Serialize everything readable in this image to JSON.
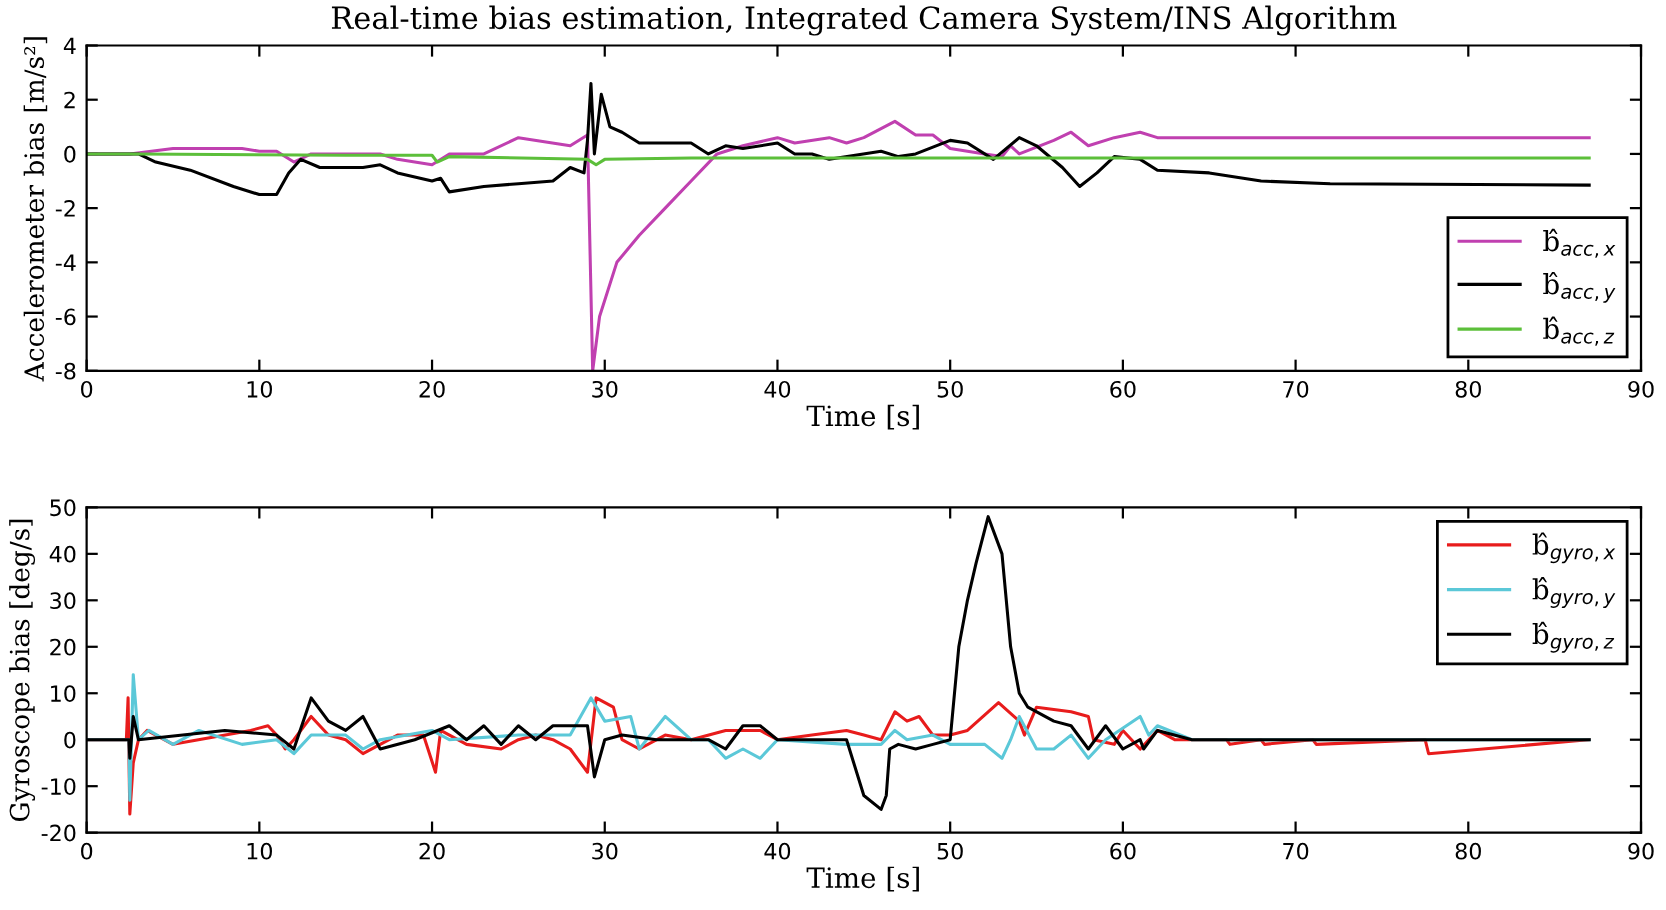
{
  "chart_data": [
    {
      "type": "line",
      "title": "Real-time bias estimation, Integrated Camera System/INS Algorithm",
      "xlabel": "Time [s]",
      "ylabel": "Accelerometer bias [m/s²]",
      "xlim": [
        0,
        90
      ],
      "ylim": [
        -8,
        4
      ],
      "xticks": [
        0,
        10,
        20,
        30,
        40,
        50,
        60,
        70,
        80,
        90
      ],
      "yticks": [
        -8,
        -6,
        -4,
        -2,
        0,
        2,
        4
      ],
      "grid": false,
      "legend": "bottom right",
      "series": [
        {
          "name": "b̂$_{acc,x}$",
          "color": "#c040b0",
          "x": [
            0,
            2.5,
            5,
            9,
            10,
            11,
            12,
            13,
            17,
            18,
            20,
            21,
            23,
            25,
            28,
            29,
            29.3,
            29.7,
            30.7,
            32,
            33.5,
            35,
            36.5,
            38,
            40,
            41,
            43,
            44,
            45,
            46.8,
            48,
            49,
            50,
            52,
            53,
            53.5,
            54,
            56,
            57,
            58,
            59.5,
            61,
            62,
            65,
            87
          ],
          "values": [
            0,
            0,
            0.2,
            0.2,
            0.1,
            0.1,
            -0.3,
            0,
            0,
            -0.2,
            -0.4,
            0,
            0,
            0.6,
            0.3,
            0.7,
            -8,
            -6,
            -4,
            -3,
            -2,
            -1,
            0,
            0.3,
            0.6,
            0.4,
            0.6,
            0.4,
            0.6,
            1.2,
            0.7,
            0.7,
            0.2,
            0,
            -0.1,
            0.3,
            0,
            0.5,
            0.8,
            0.3,
            0.6,
            0.8,
            0.6,
            0.6,
            0.6
          ]
        },
        {
          "name": "b̂$_{acc,y}$",
          "color": "#000000",
          "x": [
            0,
            3,
            4,
            6,
            8.5,
            10,
            11,
            11.7,
            12.4,
            13.5,
            16,
            17,
            18,
            20,
            20.5,
            21,
            23,
            25,
            27,
            28,
            28.8,
            29,
            29.2,
            29.4,
            29.8,
            30.3,
            31,
            32,
            35,
            36,
            37,
            38,
            40,
            41,
            42,
            43,
            46,
            47,
            48,
            50,
            51,
            52.5,
            54,
            55,
            56.5,
            57.5,
            58.5,
            59.5,
            61,
            62,
            65,
            68,
            72,
            87
          ],
          "values": [
            0,
            0,
            -0.3,
            -0.6,
            -1.2,
            -1.5,
            -1.5,
            -0.7,
            -0.2,
            -0.5,
            -0.5,
            -0.4,
            -0.7,
            -1,
            -0.9,
            -1.4,
            -1.2,
            -1.1,
            -1,
            -0.5,
            -0.7,
            0.5,
            2.6,
            0,
            2.2,
            1,
            0.8,
            0.4,
            0.4,
            0,
            0.3,
            0.2,
            0.4,
            0,
            0,
            -0.2,
            0.1,
            -0.1,
            0,
            0.5,
            0.4,
            -0.2,
            0.6,
            0.3,
            -0.5,
            -1.2,
            -0.7,
            -0.1,
            -0.2,
            -0.6,
            -0.7,
            -1,
            -1.1,
            -1.15
          ]
        },
        {
          "name": "b̂$_{acc,z}$",
          "color": "#5cbf3a",
          "x": [
            0,
            3,
            15,
            20,
            20.3,
            21,
            29,
            29.5,
            30,
            35,
            87
          ],
          "values": [
            0,
            0,
            -0.05,
            -0.05,
            -0.3,
            -0.1,
            -0.2,
            -0.4,
            -0.2,
            -0.15,
            -0.15
          ]
        }
      ]
    },
    {
      "type": "line",
      "xlabel": "Time [s]",
      "ylabel": "Gyroscope bias [deg/s]",
      "xlim": [
        0,
        90
      ],
      "ylim": [
        -20,
        50
      ],
      "xticks": [
        0,
        10,
        20,
        30,
        40,
        50,
        60,
        70,
        80,
        90
      ],
      "yticks": [
        -20,
        -10,
        0,
        10,
        20,
        30,
        40,
        50
      ],
      "grid": false,
      "legend": "top right",
      "series": [
        {
          "name": "b̂$_{gyro,x}$",
          "color": "#e81c1c",
          "x": [
            0,
            2.3,
            2.4,
            2.5,
            2.7,
            3,
            3.5,
            5,
            9.5,
            10.5,
            11,
            11.5,
            12,
            13,
            14,
            15,
            16,
            17,
            18,
            19.5,
            20.2,
            20.5,
            22,
            24,
            25,
            26,
            27,
            28,
            29,
            29.5,
            30.5,
            31,
            32,
            33.5,
            35,
            37,
            39,
            40,
            42,
            44,
            45,
            46,
            46.8,
            47.5,
            48.2,
            49,
            50,
            51,
            52.8,
            54,
            54.3,
            55,
            57,
            58,
            58.3,
            59.5,
            60,
            61,
            62,
            63,
            66,
            66.2,
            68,
            68.2,
            71,
            71.2,
            77.5,
            77.7,
            87
          ],
          "values": [
            0,
            0,
            9,
            -16,
            -5,
            0,
            2,
            -1,
            2,
            3,
            1,
            -2,
            0,
            5,
            1,
            0,
            -3,
            -1,
            1,
            1,
            -7,
            2,
            -1,
            -2,
            0,
            1,
            0,
            -2,
            -7,
            9,
            7,
            0,
            -2,
            1,
            0,
            2,
            2,
            0,
            1,
            2,
            1,
            0,
            6,
            4,
            5,
            1,
            1,
            2,
            8,
            4,
            1,
            7,
            6,
            5,
            0,
            -1,
            2,
            -2,
            2,
            0,
            0,
            -1,
            0,
            -1,
            0,
            -1,
            0,
            -3,
            0
          ]
        },
        {
          "name": "b̂$_{gyro,y}$",
          "color": "#5bc8d8",
          "x": [
            0,
            2.45,
            2.5,
            2.7,
            3,
            3.6,
            5,
            6.5,
            9,
            11,
            12,
            13,
            15,
            16,
            17,
            20,
            21,
            25,
            28,
            29.2,
            30,
            31.5,
            32,
            33.5,
            35,
            36,
            37,
            38,
            39,
            40,
            44,
            46,
            46.8,
            47.5,
            49,
            50,
            52,
            53,
            53.5,
            54,
            55,
            56,
            57,
            58,
            59,
            61,
            61.5,
            62,
            64,
            87
          ],
          "values": [
            0,
            0,
            -13,
            14,
            0,
            2,
            -1,
            2,
            -1,
            0,
            -3,
            1,
            1,
            -2,
            0,
            2,
            0,
            1,
            1,
            9,
            4,
            5,
            -2,
            5,
            0,
            0,
            -4,
            -2,
            -4,
            0,
            -1,
            -1,
            2,
            0,
            1,
            -1,
            -1,
            -4,
            0,
            5,
            -2,
            -2,
            1,
            -4,
            0,
            5,
            1,
            3,
            0,
            0
          ]
        },
        {
          "name": "b̂$_{gyro,z}$",
          "color": "#000000",
          "x": [
            0,
            2.45,
            2.5,
            2.7,
            3,
            8,
            11,
            12,
            13,
            14,
            15,
            16,
            17,
            19,
            21,
            22,
            23,
            24,
            25,
            26,
            27,
            29,
            29.4,
            30,
            31,
            33,
            36,
            37,
            38,
            39,
            40,
            44,
            45,
            46,
            46.3,
            46.5,
            47,
            48,
            49,
            50,
            50.5,
            51,
            51.5,
            52.2,
            53,
            53.5,
            54,
            54.5,
            56,
            57,
            58,
            59,
            60,
            61,
            61.2,
            62,
            64,
            87
          ],
          "values": [
            0,
            0,
            -4,
            5,
            0,
            2,
            1,
            -2,
            9,
            4,
            2,
            5,
            -2,
            0,
            3,
            0,
            3,
            -1,
            3,
            0,
            3,
            3,
            -8,
            0,
            1,
            0,
            0,
            -2,
            3,
            3,
            0,
            0,
            -12,
            -15,
            -12,
            -2,
            -1,
            -2,
            -1,
            0,
            20,
            30,
            38,
            48,
            40,
            20,
            10,
            7,
            4,
            3,
            -2,
            3,
            -2,
            0,
            -2,
            2,
            0,
            0
          ]
        }
      ]
    }
  ]
}
